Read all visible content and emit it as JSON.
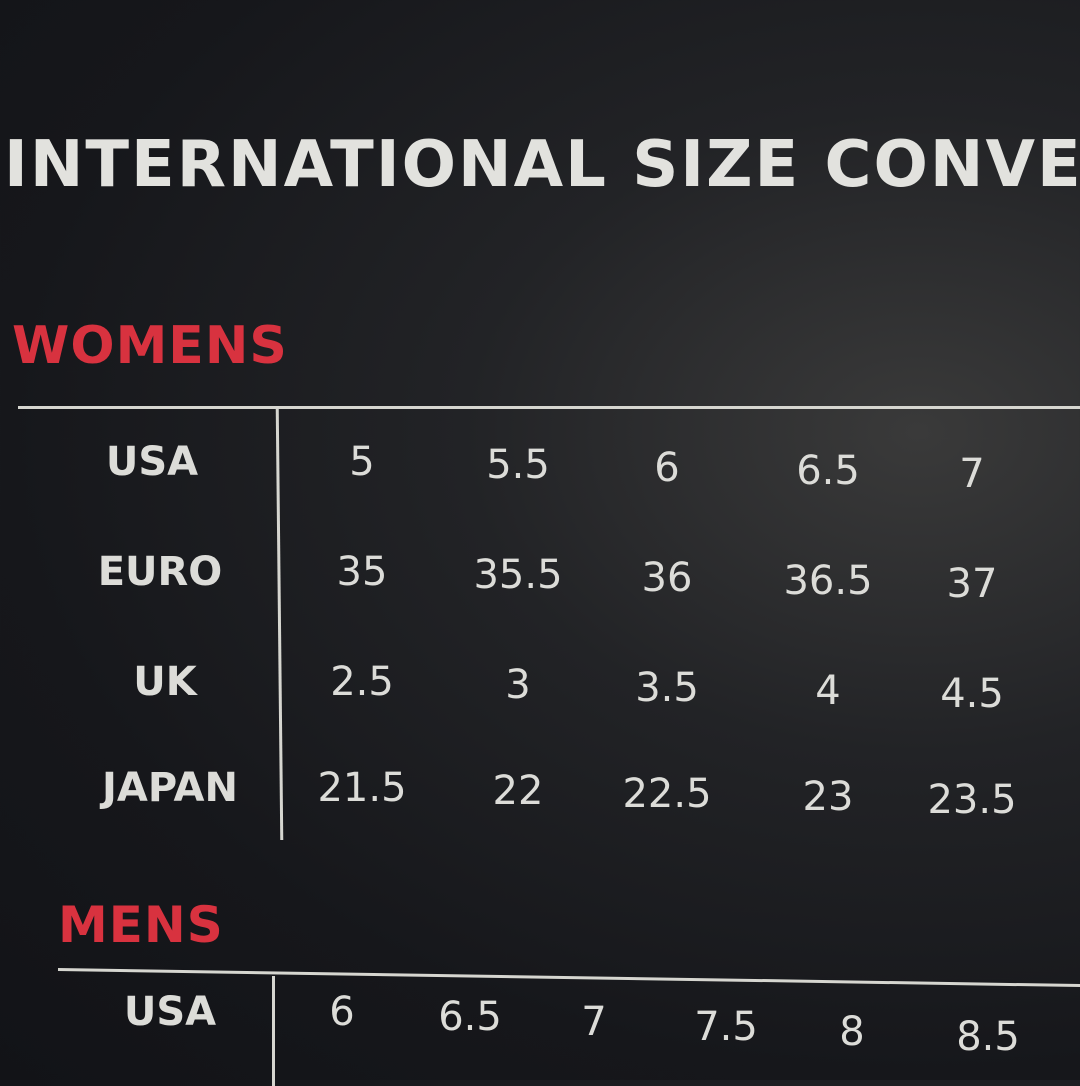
{
  "title": "INTERNATIONAL SIZE CONVE",
  "colors": {
    "section_heading": "#d8323f",
    "text": "#dcdcd8",
    "background": "#16171b"
  },
  "womens": {
    "heading": "WOMENS",
    "rows": [
      {
        "label": "USA",
        "values": [
          "5",
          "5.5",
          "6",
          "6.5",
          "7"
        ]
      },
      {
        "label": "EURO",
        "values": [
          "35",
          "35.5",
          "36",
          "36.5",
          "37"
        ]
      },
      {
        "label": "UK",
        "values": [
          "2.5",
          "3",
          "3.5",
          "4",
          "4.5"
        ]
      },
      {
        "label": "JAPAN",
        "values": [
          "21.5",
          "22",
          "22.5",
          "23",
          "23.5"
        ]
      }
    ]
  },
  "mens": {
    "heading": "MENS",
    "rows": [
      {
        "label": "USA",
        "values": [
          "6",
          "6.5",
          "7",
          "7.5",
          "8",
          "8.5"
        ]
      }
    ]
  }
}
